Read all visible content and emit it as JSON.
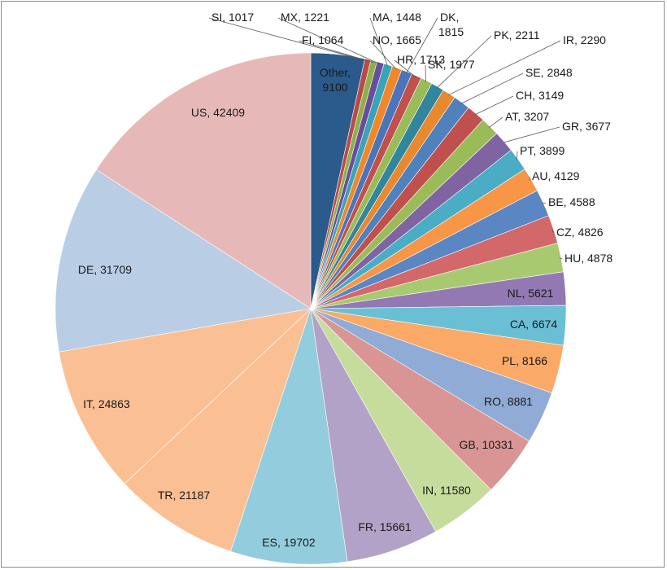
{
  "chart_data": {
    "type": "pie",
    "title": "",
    "start": "Other",
    "direction": "clockwise",
    "slices": [
      {
        "label": "Other",
        "value": 9100,
        "color": "#2b5a8c"
      },
      {
        "label": "SI",
        "value": 1017,
        "color": "#b94a48"
      },
      {
        "label": "FI",
        "value": 1064,
        "color": "#8cb04a"
      },
      {
        "label": "MX",
        "value": 1221,
        "color": "#6b4c9a"
      },
      {
        "label": "MA",
        "value": 1448,
        "color": "#3aa3b8"
      },
      {
        "label": "NO",
        "value": 1665,
        "color": "#f0872b"
      },
      {
        "label": "DK",
        "value": 1815,
        "color": "#4a75b8"
      },
      {
        "label": "HR",
        "value": 1713,
        "color": "#c0504d"
      },
      {
        "label": "SK",
        "value": 1977,
        "color": "#9bbb59"
      },
      {
        "label": "PK",
        "value": 2211,
        "color": "#31859c"
      },
      {
        "label": "IR",
        "value": 2290,
        "color": "#e8892e"
      },
      {
        "label": "SE",
        "value": 2848,
        "color": "#4f81bd"
      },
      {
        "label": "CH",
        "value": 3149,
        "color": "#c0504d"
      },
      {
        "label": "AT",
        "value": 3207,
        "color": "#9bbb59"
      },
      {
        "label": "GR",
        "value": 3677,
        "color": "#8064a2"
      },
      {
        "label": "PT",
        "value": 3899,
        "color": "#4bacc6"
      },
      {
        "label": "AU",
        "value": 4129,
        "color": "#f79646"
      },
      {
        "label": "BE",
        "value": 4588,
        "color": "#5a86c4"
      },
      {
        "label": "CZ",
        "value": 4826,
        "color": "#d2686a"
      },
      {
        "label": "HU",
        "value": 4878,
        "color": "#a9c971"
      },
      {
        "label": "NL",
        "value": 5621,
        "color": "#9279b3"
      },
      {
        "label": "CA",
        "value": 6674,
        "color": "#6bbfd4"
      },
      {
        "label": "PL",
        "value": 8166,
        "color": "#fba967"
      },
      {
        "label": "RO",
        "value": 8881,
        "color": "#90abd6"
      },
      {
        "label": "GB",
        "value": 10331,
        "color": "#d99594"
      },
      {
        "label": "IN",
        "value": 11580,
        "color": "#c6dc9c"
      },
      {
        "label": "FR",
        "value": 15661,
        "color": "#b3a2c7"
      },
      {
        "label": "ES",
        "value": 19702,
        "color": "#93cddd"
      },
      {
        "label": "TR",
        "value": 21187,
        "color": "#fbbf94"
      },
      {
        "label": "IT",
        "value": 24863,
        "color": "#b9cde5"
      },
      {
        "label": "DE",
        "value": 31709,
        "color": "#e6b9b8"
      }
    ]
  }
}
